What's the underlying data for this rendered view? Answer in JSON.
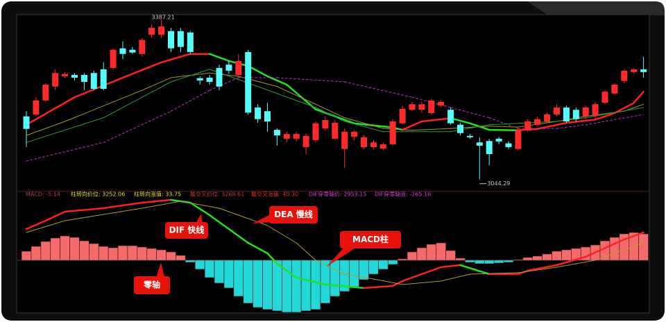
{
  "chart_data": [
    {
      "type": "candlestick",
      "ylim": [
        3020,
        3400
      ],
      "up_color": "#ff2a2a",
      "down_color": "#54fcfc",
      "open": [
        3180,
        3184,
        3214,
        3244,
        3266,
        3269,
        3269,
        3273,
        3281,
        3284,
        3326,
        3323,
        3314,
        3355,
        3355,
        3363,
        3363,
        3360,
        3262,
        3263,
        3284,
        3291,
        3269,
        3318,
        3199,
        3191,
        3151,
        3132,
        3132,
        3114,
        3129,
        3154,
        3132,
        3110,
        3136,
        3114,
        3114,
        3111,
        3120,
        3165,
        3194,
        3194,
        3187,
        3203,
        3194,
        3162,
        3138,
        3124,
        3127,
        3132,
        3122,
        3110,
        3150,
        3162,
        3169,
        3184,
        3199,
        3194,
        3180,
        3181,
        3209,
        3229,
        3256,
        3275,
        3281
      ],
      "high": [
        3191,
        3221,
        3251,
        3281,
        3275,
        3273,
        3273,
        3278,
        3296,
        3326,
        3341,
        3329,
        3348,
        3378,
        3387.21,
        3370,
        3370,
        3363,
        3266,
        3269,
        3291,
        3299,
        3314,
        3323,
        3206,
        3209,
        3154,
        3147,
        3147,
        3144,
        3169,
        3180,
        3172,
        3154,
        3151,
        3139,
        3129,
        3124,
        3174,
        3203,
        3211,
        3211,
        3218,
        3216,
        3199,
        3166,
        3142,
        3135,
        3132,
        3136,
        3127,
        3154,
        3174,
        3180,
        3188,
        3206,
        3203,
        3199,
        3203,
        3211,
        3236,
        3251,
        3281,
        3284,
        3308
      ],
      "low": [
        3114,
        3180,
        3211,
        3236,
        3263,
        3257,
        3236,
        3236,
        3236,
        3281,
        3303,
        3314,
        3308,
        3348,
        3348,
        3318,
        3318,
        3314,
        3248,
        3248,
        3236,
        3271,
        3263,
        3184,
        3166,
        3147,
        3117,
        3124,
        3126,
        3099,
        3124,
        3150,
        3129,
        3069,
        3129,
        3110,
        3110,
        3107,
        3117,
        3162,
        3191,
        3188,
        3184,
        3199,
        3162,
        3139,
        3132,
        3044.29,
        3075,
        3120,
        3110,
        3107,
        3147,
        3158,
        3165,
        3180,
        3166,
        3169,
        3174,
        3174,
        3206,
        3226,
        3251,
        3271,
        3263
      ],
      "close": [
        3153,
        3214,
        3248,
        3273,
        3271,
        3263,
        3254,
        3239,
        3239,
        3323,
        3314,
        3317,
        3344,
        3370,
        3373,
        3326,
        3329,
        3318,
        3257,
        3254,
        3244,
        3278,
        3299,
        3188,
        3174,
        3169,
        3139,
        3142,
        3142,
        3138,
        3165,
        3172,
        3166,
        3147,
        3147,
        3135,
        3124,
        3120,
        3169,
        3196,
        3206,
        3206,
        3214,
        3211,
        3165,
        3144,
        3135,
        3117,
        3099,
        3126,
        3114,
        3150,
        3169,
        3174,
        3184,
        3199,
        3169,
        3174,
        3199,
        3206,
        3233,
        3248,
        3278,
        3281,
        3275
      ],
      "lines": [
        {
          "color": "#ff2020",
          "fall_color": "#22e022",
          "x": [
            0,
            5,
            10,
            14,
            17,
            19,
            21,
            23,
            25,
            27,
            30,
            34,
            38,
            39,
            41,
            44,
            46,
            48,
            51,
            53,
            56,
            59,
            61,
            63,
            64
          ],
          "values": [
            3162,
            3221,
            3263,
            3296,
            3314,
            3314,
            3299,
            3288,
            3266,
            3248,
            3195,
            3165,
            3156,
            3151,
            3169,
            3176,
            3165,
            3151,
            3150,
            3153,
            3166,
            3173,
            3187,
            3209,
            3233
          ]
        },
        {
          "color": "#a89a1e",
          "x": [
            0,
            4,
            12,
            15,
            19,
            22,
            26,
            30,
            33,
            37,
            40,
            44,
            48,
            51,
            55,
            58,
            62,
            64
          ],
          "values": [
            3139,
            3169,
            3236,
            3263,
            3273,
            3266,
            3244,
            3206,
            3177,
            3154,
            3150,
            3154,
            3159,
            3157,
            3169,
            3180,
            3191,
            3206
          ]
        },
        {
          "color": "#2f9a2f",
          "x": [
            0,
            8,
            15,
            19,
            22,
            26,
            30,
            33,
            37,
            40,
            44,
            48,
            51,
            55,
            58,
            64
          ],
          "values": [
            3124,
            3177,
            3254,
            3281,
            3259,
            3229,
            3199,
            3169,
            3147,
            3147,
            3147,
            3162,
            3165,
            3169,
            3177,
            3199
          ]
        },
        {
          "color": "#c02cc8",
          "dash": true,
          "x": [
            0,
            8,
            15,
            19,
            22,
            26,
            33,
            40,
            44,
            48,
            51,
            55,
            58,
            64
          ],
          "values": [
            3084,
            3124,
            3191,
            3236,
            3263,
            3263,
            3254,
            3221,
            3199,
            3177,
            3154,
            3154,
            3162,
            3184
          ]
        }
      ]
    },
    {
      "type": "macd",
      "ylim": [
        -80,
        95
      ],
      "header": [
        {
          "text": "MACD: -5.14",
          "color": "#b04040"
        },
        {
          "text": "柱转向价位: 3252.06",
          "color": "#e0e020"
        },
        {
          "text": "柱转向涨值: 33.75",
          "color": "#e0e020"
        },
        {
          "text": "触交叉价位: 3268.61",
          "color": "#c03838"
        },
        {
          "text": "触交叉涨值: 40.30",
          "color": "#e03030"
        },
        {
          "text": "DIF穿零轴价: 2953.15",
          "color": "#d040d0"
        },
        {
          "text": "DIF穿零轴涨: -265.16",
          "color": "#d040d0"
        }
      ],
      "histogram": {
        "pos_color": "#f56a6a",
        "neg_color": "#22d8d8",
        "values": [
          13,
          20,
          27,
          32,
          35,
          33,
          28,
          24,
          20,
          18,
          21,
          21,
          19,
          17,
          15,
          12,
          7,
          -3,
          -13,
          -25,
          -33,
          -40,
          -52,
          -62,
          -68,
          -71,
          -73,
          -75,
          -75,
          -73,
          -71,
          -62,
          -52,
          -45,
          -38,
          -28,
          -20,
          -13,
          -6,
          2,
          12,
          18,
          23,
          25,
          14,
          3,
          -3,
          -5,
          -5,
          -4,
          -3,
          1,
          4,
          6,
          9,
          13,
          15,
          17,
          19,
          22,
          28,
          33,
          38,
          40,
          38
        ]
      },
      "lines": [
        {
          "color": "#ff2020",
          "fall_color": "#22e022",
          "x": [
            0,
            2,
            4,
            8,
            12,
            15,
            17,
            19,
            21,
            23,
            25,
            26,
            28,
            31,
            35,
            38,
            39,
            40,
            43,
            45,
            48,
            51,
            52,
            55,
            58,
            62,
            64
          ],
          "values": [
            45,
            57,
            70,
            75,
            83,
            87,
            83,
            65,
            45,
            25,
            10,
            -5,
            -25,
            -35,
            -40,
            -37,
            -30,
            -25,
            -10,
            -7,
            -20,
            -20,
            -15,
            -7,
            5,
            30,
            40
          ]
        },
        {
          "color": "#b0a020",
          "x": [
            0,
            4,
            12,
            16,
            20,
            25,
            28,
            30,
            33,
            36,
            39,
            43,
            46,
            51,
            55,
            59,
            64
          ],
          "values": [
            40,
            57,
            75,
            85,
            75,
            50,
            25,
            0,
            -20,
            -27,
            -35,
            -30,
            -20,
            -18,
            -10,
            0,
            25
          ]
        }
      ],
      "annotations": [
        "DIF 快线",
        "DEA 慢线",
        "MACD柱",
        "零轴"
      ]
    }
  ]
}
